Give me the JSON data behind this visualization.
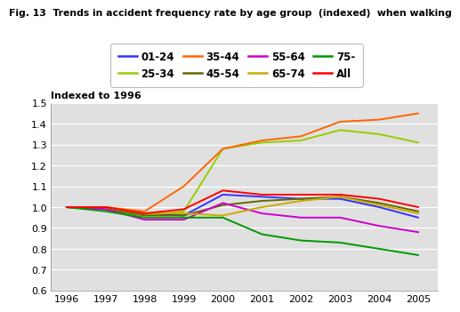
{
  "title": "Fig. 13  Trends in accident frequency rate by age group  (indexed)  when walking",
  "ylabel": "Indexed to 1996",
  "years": [
    1996,
    1997,
    1998,
    1999,
    2000,
    2001,
    2002,
    2003,
    2004,
    2005
  ],
  "ylim": [
    0.6,
    1.5
  ],
  "yticks": [
    0.6,
    0.7,
    0.8,
    0.9,
    1.0,
    1.1,
    1.2,
    1.3,
    1.4,
    1.5
  ],
  "series": [
    {
      "label": "01-24",
      "color": "#3333FF",
      "values": [
        1.0,
        1.0,
        0.97,
        0.96,
        1.06,
        1.05,
        1.04,
        1.04,
        1.0,
        0.95
      ]
    },
    {
      "label": "25-34",
      "color": "#99CC00",
      "values": [
        1.0,
        0.99,
        0.96,
        0.98,
        1.28,
        1.31,
        1.32,
        1.37,
        1.35,
        1.31
      ]
    },
    {
      "label": "35-44",
      "color": "#FF6600",
      "values": [
        1.0,
        1.0,
        0.98,
        1.1,
        1.28,
        1.32,
        1.34,
        1.41,
        1.42,
        1.45
      ]
    },
    {
      "label": "45-54",
      "color": "#666600",
      "values": [
        1.0,
        0.99,
        0.96,
        0.96,
        1.01,
        1.03,
        1.04,
        1.05,
        1.02,
        0.98
      ]
    },
    {
      "label": "55-64",
      "color": "#CC00CC",
      "values": [
        1.0,
        0.99,
        0.94,
        0.94,
        1.02,
        0.97,
        0.95,
        0.95,
        0.91,
        0.88
      ]
    },
    {
      "label": "65-74",
      "color": "#CCAA00",
      "values": [
        1.0,
        1.0,
        0.97,
        0.97,
        0.96,
        1.0,
        1.03,
        1.05,
        1.01,
        0.97
      ]
    },
    {
      "label": "75-",
      "color": "#009900",
      "values": [
        1.0,
        0.98,
        0.95,
        0.95,
        0.95,
        0.87,
        0.84,
        0.83,
        0.8,
        0.77
      ]
    },
    {
      "label": "All",
      "color": "#FF0000",
      "values": [
        1.0,
        1.0,
        0.97,
        0.99,
        1.08,
        1.06,
        1.06,
        1.06,
        1.04,
        1.0
      ]
    }
  ],
  "background_color": "#E0E0E0",
  "grid_color": "#FFFFFF"
}
